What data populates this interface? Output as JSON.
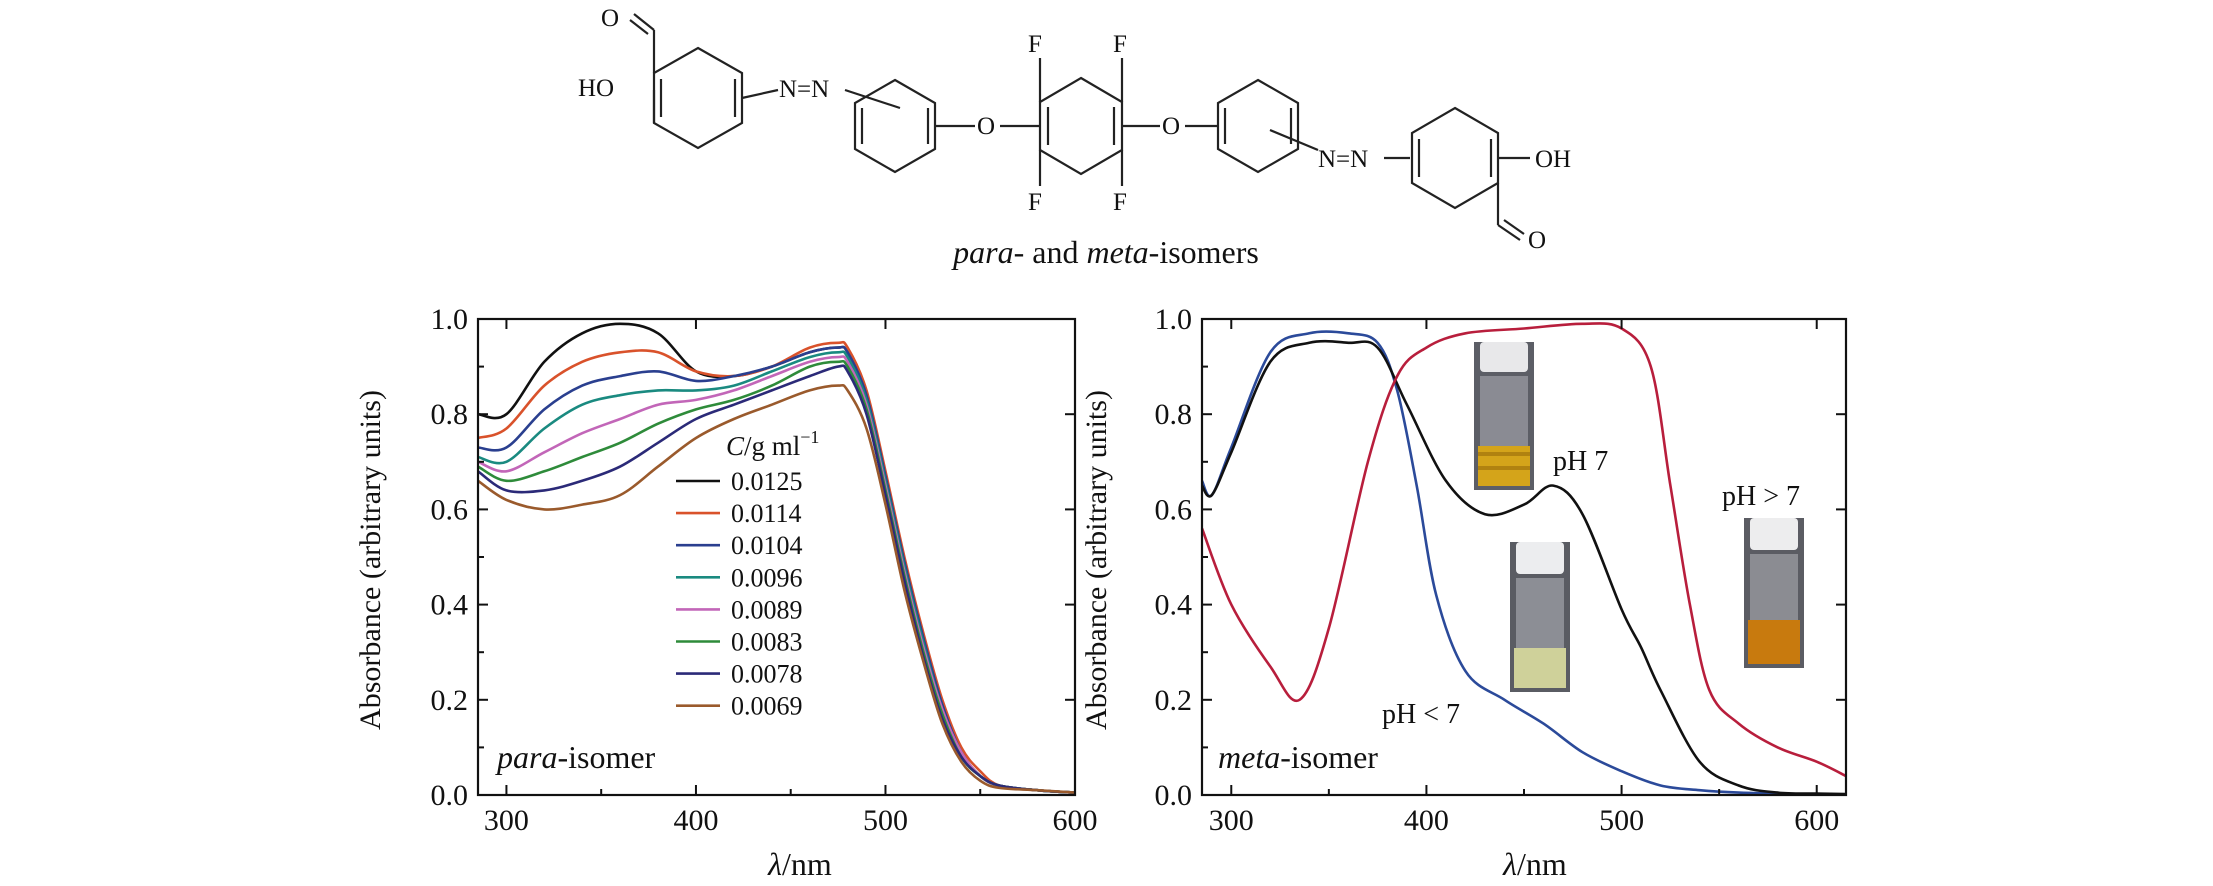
{
  "structure": {
    "caption_italic_1": "para",
    "caption_mid": "- and ",
    "caption_italic_2": "meta",
    "caption_end": "-isomers",
    "atoms": {
      "aldehyde_o": "O",
      "hydroxyl": "HO",
      "azo_left": "N=N",
      "ether_o": "O",
      "fluorine": "F",
      "azo_right": "N=N",
      "hydroxyl_right": "OH"
    }
  },
  "chart_data": [
    {
      "type": "line",
      "panel_label_italic": "para",
      "panel_label_rest": "-isomer",
      "xlabel_symbol": "λ",
      "xlabel_unit": "/nm",
      "ylabel": "Absorbance (arbitrary units)",
      "xlim": [
        285,
        600
      ],
      "ylim": [
        0.0,
        1.0
      ],
      "xticks": [
        "300",
        "400",
        "500",
        "600"
      ],
      "yticks": [
        "0.0",
        "0.2",
        "0.4",
        "0.6",
        "0.8",
        "1.0"
      ],
      "legend_title_italic": "C",
      "legend_title_rest": "/g ml",
      "legend_title_sup": "−1",
      "legend_position": "center",
      "grid": false,
      "series": [
        {
          "name": "0.0125",
          "color": "#111111",
          "x": [
            285,
            300,
            320,
            340,
            360,
            380,
            400,
            420,
            440,
            460,
            475,
            480,
            490,
            500,
            510,
            520,
            530,
            540,
            550,
            560,
            580,
            600
          ],
          "y": [
            0.8,
            0.8,
            0.91,
            0.97,
            0.99,
            0.97,
            0.89,
            0.88,
            0.9,
            0.93,
            0.94,
            0.93,
            0.84,
            0.67,
            0.49,
            0.33,
            0.19,
            0.09,
            0.04,
            0.02,
            0.01,
            0.005
          ]
        },
        {
          "name": "0.0114",
          "color": "#d9522b",
          "x": [
            285,
            300,
            320,
            340,
            360,
            380,
            400,
            420,
            440,
            460,
            475,
            480,
            490,
            500,
            510,
            520,
            530,
            540,
            550,
            560,
            580,
            600
          ],
          "y": [
            0.75,
            0.77,
            0.86,
            0.91,
            0.93,
            0.93,
            0.89,
            0.88,
            0.9,
            0.94,
            0.95,
            0.94,
            0.85,
            0.68,
            0.5,
            0.34,
            0.2,
            0.1,
            0.05,
            0.02,
            0.01,
            0.005
          ]
        },
        {
          "name": "0.0104",
          "color": "#2a3f8f",
          "x": [
            285,
            300,
            320,
            340,
            360,
            380,
            400,
            420,
            440,
            460,
            475,
            480,
            490,
            500,
            510,
            520,
            530,
            540,
            550,
            560,
            580,
            600
          ],
          "y": [
            0.73,
            0.73,
            0.81,
            0.86,
            0.88,
            0.89,
            0.87,
            0.88,
            0.9,
            0.93,
            0.94,
            0.93,
            0.84,
            0.67,
            0.49,
            0.33,
            0.19,
            0.09,
            0.04,
            0.02,
            0.01,
            0.005
          ]
        },
        {
          "name": "0.0096",
          "color": "#1a8a80",
          "x": [
            285,
            300,
            320,
            340,
            360,
            380,
            400,
            420,
            440,
            460,
            475,
            480,
            490,
            500,
            510,
            520,
            530,
            540,
            550,
            560,
            580,
            600
          ],
          "y": [
            0.71,
            0.7,
            0.77,
            0.82,
            0.84,
            0.85,
            0.85,
            0.86,
            0.89,
            0.92,
            0.93,
            0.92,
            0.83,
            0.66,
            0.48,
            0.32,
            0.18,
            0.09,
            0.04,
            0.02,
            0.01,
            0.005
          ]
        },
        {
          "name": "0.0089",
          "color": "#c266b8",
          "x": [
            285,
            300,
            320,
            340,
            360,
            380,
            400,
            420,
            440,
            460,
            475,
            480,
            490,
            500,
            510,
            520,
            530,
            540,
            550,
            560,
            580,
            600
          ],
          "y": [
            0.7,
            0.68,
            0.72,
            0.76,
            0.79,
            0.82,
            0.83,
            0.85,
            0.88,
            0.91,
            0.92,
            0.91,
            0.82,
            0.65,
            0.47,
            0.31,
            0.18,
            0.09,
            0.04,
            0.02,
            0.01,
            0.005
          ]
        },
        {
          "name": "0.0083",
          "color": "#2e8b3a",
          "x": [
            285,
            300,
            320,
            340,
            360,
            380,
            400,
            420,
            440,
            460,
            475,
            480,
            490,
            500,
            510,
            520,
            530,
            540,
            550,
            560,
            580,
            600
          ],
          "y": [
            0.69,
            0.66,
            0.68,
            0.71,
            0.74,
            0.78,
            0.81,
            0.83,
            0.86,
            0.9,
            0.91,
            0.9,
            0.81,
            0.64,
            0.46,
            0.3,
            0.17,
            0.08,
            0.04,
            0.02,
            0.01,
            0.005
          ]
        },
        {
          "name": "0.0078",
          "color": "#2b2a78",
          "x": [
            285,
            300,
            320,
            340,
            360,
            380,
            400,
            420,
            440,
            460,
            475,
            480,
            490,
            500,
            510,
            520,
            530,
            540,
            550,
            560,
            580,
            600
          ],
          "y": [
            0.68,
            0.64,
            0.64,
            0.66,
            0.69,
            0.74,
            0.79,
            0.82,
            0.85,
            0.88,
            0.9,
            0.89,
            0.8,
            0.63,
            0.45,
            0.29,
            0.16,
            0.08,
            0.04,
            0.02,
            0.01,
            0.005
          ]
        },
        {
          "name": "0.0069",
          "color": "#9a5a2c",
          "x": [
            285,
            300,
            320,
            340,
            360,
            380,
            400,
            420,
            440,
            460,
            475,
            480,
            490,
            500,
            510,
            520,
            530,
            540,
            550,
            560,
            580,
            600
          ],
          "y": [
            0.66,
            0.62,
            0.6,
            0.61,
            0.63,
            0.69,
            0.75,
            0.79,
            0.82,
            0.85,
            0.86,
            0.85,
            0.77,
            0.61,
            0.43,
            0.28,
            0.15,
            0.07,
            0.03,
            0.015,
            0.01,
            0.005
          ]
        }
      ]
    },
    {
      "type": "line",
      "panel_label_italic": "meta",
      "panel_label_rest": "-isomer",
      "xlabel_symbol": "λ",
      "xlabel_unit": "/nm",
      "ylabel": "Absorbance (arbitrary units)",
      "xlim": [
        285,
        615
      ],
      "ylim": [
        0.0,
        1.0
      ],
      "xticks": [
        "300",
        "400",
        "500",
        "600"
      ],
      "yticks": [
        "0.0",
        "0.2",
        "0.4",
        "0.6",
        "0.8",
        "1.0"
      ],
      "grid": false,
      "series": [
        {
          "label": "pH < 7",
          "color": "#2b4a9a",
          "x": [
            285,
            290,
            300,
            320,
            340,
            360,
            375,
            385,
            395,
            405,
            420,
            440,
            460,
            480,
            500,
            520,
            540,
            560,
            580,
            600,
            615
          ],
          "y": [
            0.66,
            0.63,
            0.73,
            0.93,
            0.97,
            0.97,
            0.95,
            0.85,
            0.65,
            0.42,
            0.26,
            0.2,
            0.15,
            0.09,
            0.05,
            0.02,
            0.01,
            0.005,
            0.003,
            0.002,
            0.001
          ]
        },
        {
          "label": "pH 7",
          "color": "#111111",
          "x": [
            285,
            290,
            300,
            320,
            340,
            360,
            375,
            390,
            410,
            430,
            450,
            465,
            480,
            500,
            510,
            520,
            540,
            560,
            580,
            600,
            615
          ],
          "y": [
            0.65,
            0.63,
            0.72,
            0.91,
            0.95,
            0.95,
            0.94,
            0.82,
            0.66,
            0.59,
            0.61,
            0.65,
            0.59,
            0.39,
            0.31,
            0.22,
            0.07,
            0.02,
            0.005,
            0.003,
            0.002
          ]
        },
        {
          "label": "pH > 7",
          "color": "#b81e3c",
          "x": [
            285,
            300,
            320,
            335,
            350,
            370,
            385,
            400,
            420,
            450,
            480,
            500,
            515,
            525,
            535,
            545,
            560,
            580,
            600,
            615
          ],
          "y": [
            0.56,
            0.4,
            0.27,
            0.2,
            0.35,
            0.7,
            0.88,
            0.94,
            0.97,
            0.98,
            0.99,
            0.98,
            0.9,
            0.65,
            0.4,
            0.22,
            0.15,
            0.1,
            0.07,
            0.04
          ]
        }
      ]
    }
  ],
  "vial_labels": [
    "pH 7",
    "pH < 7",
    "pH > 7"
  ]
}
